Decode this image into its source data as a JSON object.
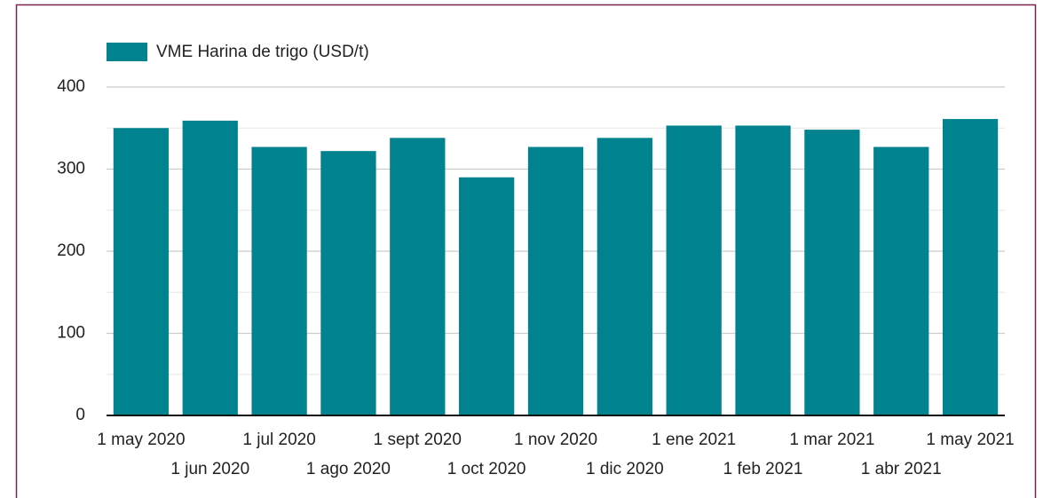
{
  "chart_data": {
    "type": "bar",
    "legend": "VME Harina de trigo (USD/t)",
    "categories": [
      "1 may 2020",
      "1 jun 2020",
      "1 jul 2020",
      "1 ago 2020",
      "1 sept 2020",
      "1 oct 2020",
      "1 nov 2020",
      "1 dic 2020",
      "1 ene 2021",
      "1 feb 2021",
      "1 mar 2021",
      "1 abr 2021",
      "1 may 2021"
    ],
    "values": [
      350,
      359,
      327,
      322,
      338,
      290,
      327,
      338,
      353,
      353,
      348,
      327,
      361
    ],
    "color": "#00838f",
    "ylim": [
      0,
      400
    ],
    "yticks": [
      0,
      100,
      200,
      300,
      400
    ],
    "minor_yticks": [
      50,
      150,
      250,
      350
    ],
    "grid": true
  }
}
